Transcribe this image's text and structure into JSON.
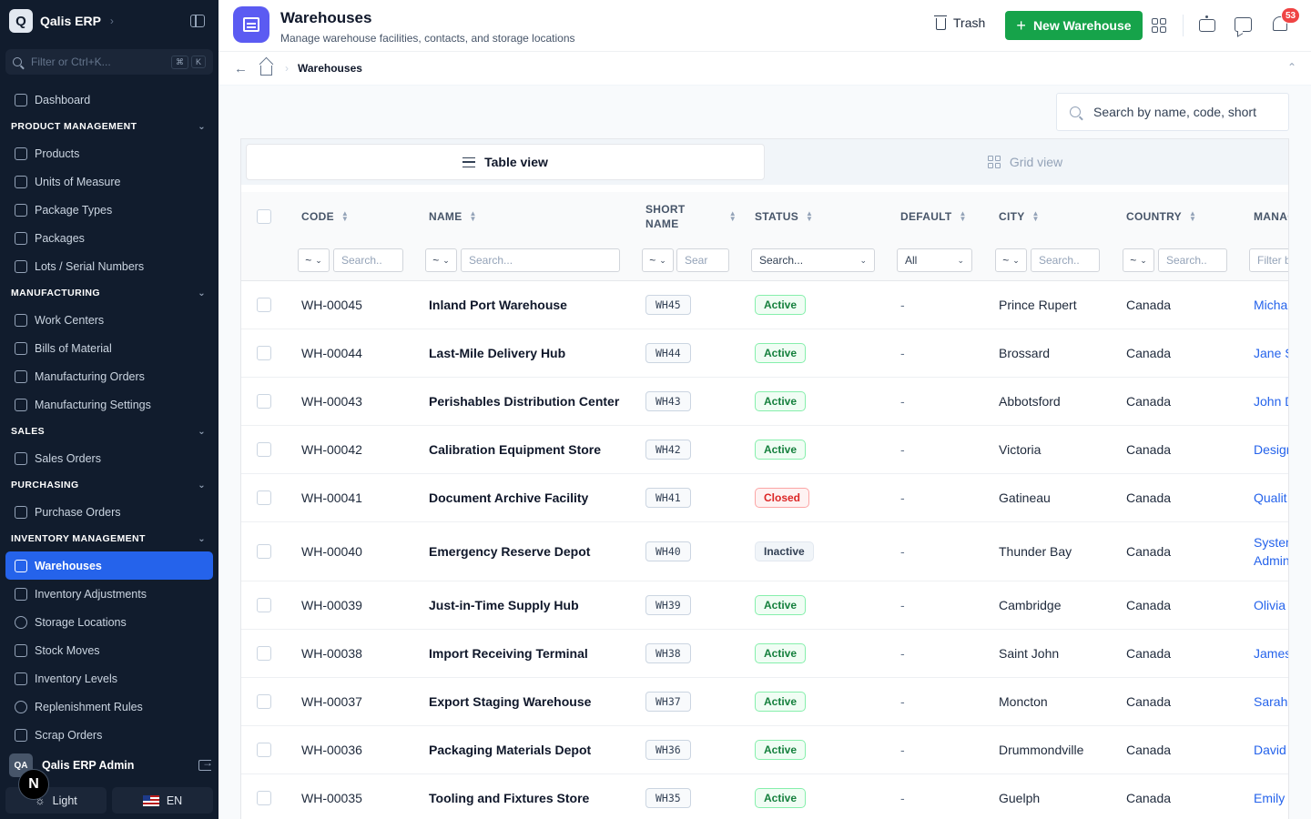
{
  "sidebar": {
    "brand": {
      "logo_letter": "Q",
      "name": "Qalis ERP"
    },
    "search": {
      "placeholder": "Filter or Ctrl+K...",
      "kbd": [
        "⌘",
        "K"
      ]
    },
    "nav": [
      {
        "type": "item",
        "label": "Dashboard",
        "icon": "dashboard-icon"
      },
      {
        "type": "section",
        "label": "PRODUCT MANAGEMENT"
      },
      {
        "type": "item",
        "label": "Products",
        "icon": "box-icon"
      },
      {
        "type": "item",
        "label": "Units of Measure",
        "icon": "ruler-icon"
      },
      {
        "type": "item",
        "label": "Package Types",
        "icon": "package-icon"
      },
      {
        "type": "item",
        "label": "Packages",
        "icon": "package-icon"
      },
      {
        "type": "item",
        "label": "Lots / Serial Numbers",
        "icon": "tag-icon"
      },
      {
        "type": "section",
        "label": "MANUFACTURING"
      },
      {
        "type": "item",
        "label": "Work Centers",
        "icon": "folder-icon"
      },
      {
        "type": "item",
        "label": "Bills of Material",
        "icon": "network-icon"
      },
      {
        "type": "item",
        "label": "Manufacturing Orders",
        "icon": "folder-icon"
      },
      {
        "type": "item",
        "label": "Manufacturing Settings",
        "icon": "sliders-icon"
      },
      {
        "type": "section",
        "label": "SALES"
      },
      {
        "type": "item",
        "label": "Sales Orders",
        "icon": "document-icon"
      },
      {
        "type": "section",
        "label": "PURCHASING"
      },
      {
        "type": "item",
        "label": "Purchase Orders",
        "icon": "cart-icon"
      },
      {
        "type": "section",
        "label": "INVENTORY MANAGEMENT"
      },
      {
        "type": "item",
        "label": "Warehouses",
        "icon": "warehouse-icon",
        "active": true
      },
      {
        "type": "item",
        "label": "Inventory Adjustments",
        "icon": "clipboard-icon"
      },
      {
        "type": "item",
        "label": "Storage Locations",
        "icon": "map-pin-icon"
      },
      {
        "type": "item",
        "label": "Stock Moves",
        "icon": "arrows-icon"
      },
      {
        "type": "item",
        "label": "Inventory Levels",
        "icon": "layers-icon"
      },
      {
        "type": "item",
        "label": "Replenishment Rules",
        "icon": "refresh-icon"
      },
      {
        "type": "item",
        "label": "Scrap Orders",
        "icon": "trash-icon"
      }
    ],
    "user": {
      "initials": "QA",
      "name": "Qalis ERP Admin"
    },
    "n_badge": "N",
    "theme_label": "Light",
    "lang_label": "EN"
  },
  "header": {
    "title": "Warehouses",
    "subtitle": "Manage warehouse facilities, contacts, and storage locations",
    "trash_label": "Trash",
    "new_label": "New Warehouse",
    "notif_count": "53"
  },
  "breadcrumb": {
    "current": "Warehouses"
  },
  "search": {
    "placeholder": "Search by name, code, short"
  },
  "views": {
    "table": "Table view",
    "grid": "Grid view"
  },
  "columns": {
    "code": "CODE",
    "name": "NAME",
    "short_line1": "SHORT",
    "short_line2": "NAME",
    "status": "STATUS",
    "default": "DEFAULT",
    "city": "CITY",
    "country": "COUNTRY",
    "manager": "MANAG"
  },
  "filters": {
    "op": "~",
    "code": "Search..",
    "name": "Search...",
    "short": "Sear",
    "status": "Search...",
    "default": "All",
    "city": "Search..",
    "country": "Search..",
    "manager": "Filter b"
  },
  "rows": [
    {
      "code": "WH-00045",
      "name": "Inland Port Warehouse",
      "short": "WH45",
      "status": "Active",
      "default": "-",
      "city": "Prince Rupert",
      "country": "Canada",
      "manager": "Micha"
    },
    {
      "code": "WH-00044",
      "name": "Last-Mile Delivery Hub",
      "short": "WH44",
      "status": "Active",
      "default": "-",
      "city": "Brossard",
      "country": "Canada",
      "manager": "Jane S"
    },
    {
      "code": "WH-00043",
      "name": "Perishables Distribution Center",
      "short": "WH43",
      "status": "Active",
      "default": "-",
      "city": "Abbotsford",
      "country": "Canada",
      "manager": "John D"
    },
    {
      "code": "WH-00042",
      "name": "Calibration Equipment Store",
      "short": "WH42",
      "status": "Active",
      "default": "-",
      "city": "Victoria",
      "country": "Canada",
      "manager": "Design"
    },
    {
      "code": "WH-00041",
      "name": "Document Archive Facility",
      "short": "WH41",
      "status": "Closed",
      "default": "-",
      "city": "Gatineau",
      "country": "Canada",
      "manager": "Qualit"
    },
    {
      "code": "WH-00040",
      "name": "Emergency Reserve Depot",
      "short": "WH40",
      "status": "Inactive",
      "default": "-",
      "city": "Thunder Bay",
      "country": "Canada",
      "manager": "System Admin"
    },
    {
      "code": "WH-00039",
      "name": "Just-in-Time Supply Hub",
      "short": "WH39",
      "status": "Active",
      "default": "-",
      "city": "Cambridge",
      "country": "Canada",
      "manager": "Olivia"
    },
    {
      "code": "WH-00038",
      "name": "Import Receiving Terminal",
      "short": "WH38",
      "status": "Active",
      "default": "-",
      "city": "Saint John",
      "country": "Canada",
      "manager": "James"
    },
    {
      "code": "WH-00037",
      "name": "Export Staging Warehouse",
      "short": "WH37",
      "status": "Active",
      "default": "-",
      "city": "Moncton",
      "country": "Canada",
      "manager": "Sarah"
    },
    {
      "code": "WH-00036",
      "name": "Packaging Materials Depot",
      "short": "WH36",
      "status": "Active",
      "default": "-",
      "city": "Drummondville",
      "country": "Canada",
      "manager": "David"
    },
    {
      "code": "WH-00035",
      "name": "Tooling and Fixtures Store",
      "short": "WH35",
      "status": "Active",
      "default": "-",
      "city": "Guelph",
      "country": "Canada",
      "manager": "Emily V"
    }
  ]
}
